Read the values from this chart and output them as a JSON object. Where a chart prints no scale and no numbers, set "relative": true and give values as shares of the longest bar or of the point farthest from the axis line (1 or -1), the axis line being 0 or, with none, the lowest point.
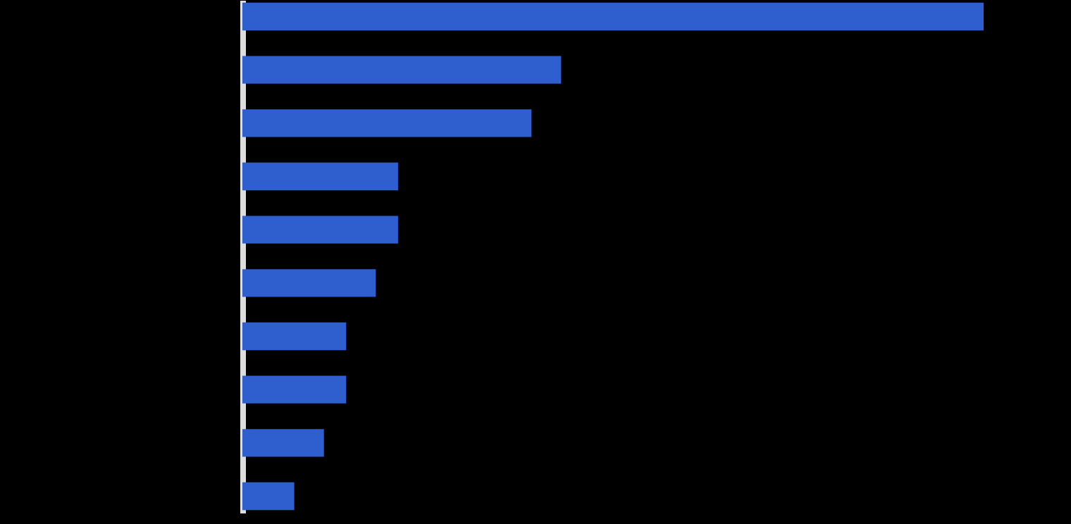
{
  "chart_data": {
    "type": "bar",
    "orientation": "horizontal",
    "relative": true,
    "tick_labels": false,
    "legend": false,
    "categories": [
      null,
      null,
      null,
      null,
      null,
      null,
      null,
      null,
      null,
      null
    ],
    "series": [
      {
        "color": "#2f5fcf",
        "values": [
          1,
          0.43,
          0.39,
          0.21,
          0.21,
          0.18,
          0.14,
          0.14,
          0.11,
          0.07
        ]
      }
    ]
  }
}
